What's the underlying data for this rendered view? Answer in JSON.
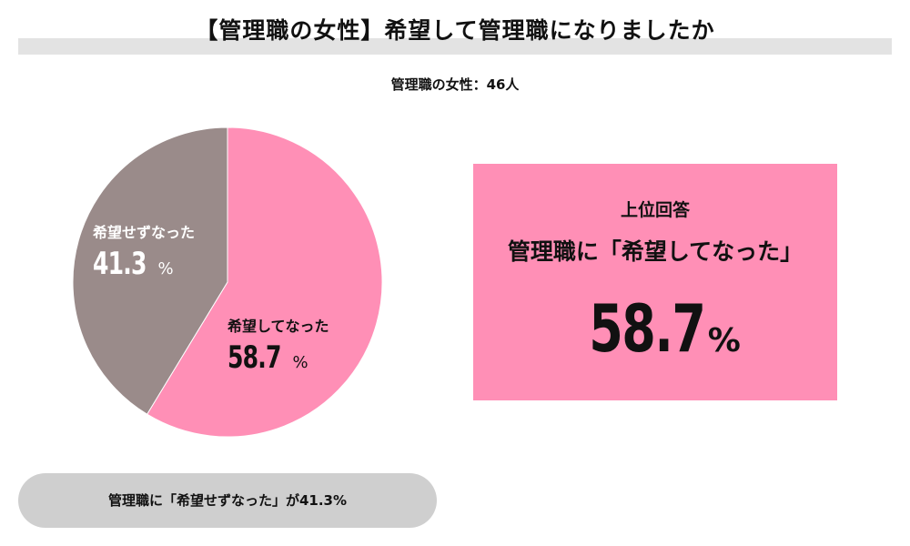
{
  "title": "【管理職の女性】希望して管理職になりましたか",
  "subtitle": "管理職の女性：46人",
  "colors": {
    "yes": "#ff8fb6",
    "no": "#9a8b8a",
    "title_band": "#e3e3e3",
    "pill": "#cfcfcf"
  },
  "chart_data": {
    "type": "pie",
    "title": "【管理職の女性】希望して管理職になりましたか",
    "subtitle": "管理職の女性：46人",
    "slices": [
      {
        "label": "希望してなった",
        "value": 58.7,
        "display": "58.7",
        "unit": "%",
        "color": "#ff8fb6"
      },
      {
        "label": "希望せずなった",
        "value": 41.3,
        "display": "41.3",
        "unit": "%",
        "color": "#9a8b8a"
      }
    ]
  },
  "top_answer": {
    "heading": "上位回答",
    "answer": "管理職に「希望してなった」",
    "value": "58.7",
    "unit": "%"
  },
  "note": "管理職に「希望せずなった」が41.3%"
}
